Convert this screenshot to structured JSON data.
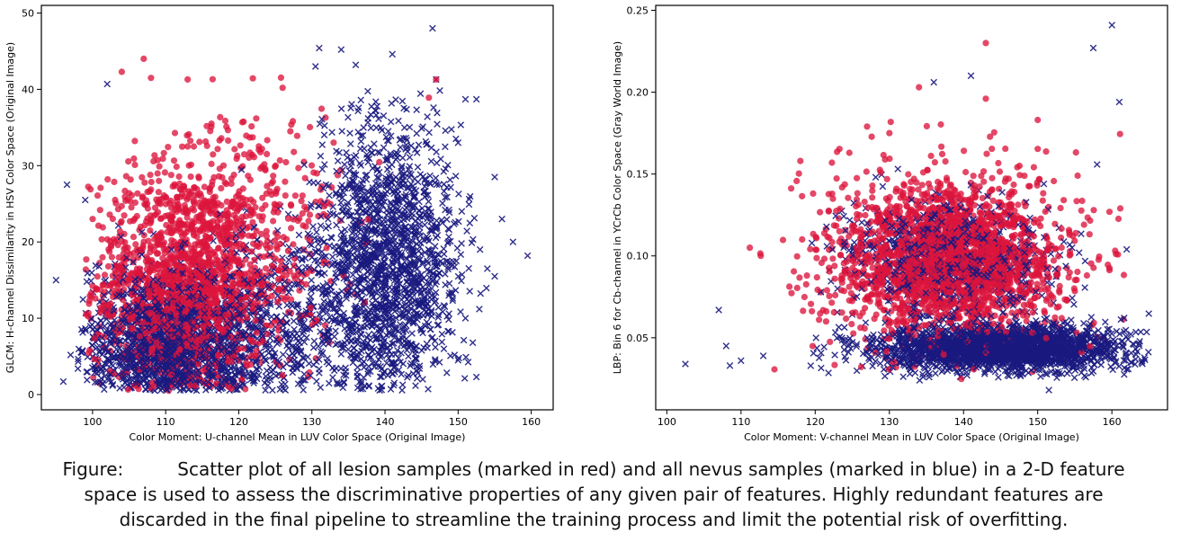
{
  "caption": {
    "lead": "Figure:",
    "text": "Scatter plot of all lesion samples (marked in red) and all nevus samples (marked in blue) in a 2-D feature space is used to assess the discriminative properties of any given pair of features. Highly redundant features are discarded in the final pipeline to streamline the training process and limit the potential risk of overfitting."
  },
  "chart_data": [
    {
      "type": "scatter",
      "title": "",
      "xlabel": "Color Moment: U-channel Mean in LUV Color Space (Original Image)",
      "ylabel": "GLCM: H-channel Dissimilarity in HSV Color Space (Original Image)",
      "xlim": [
        93,
        163
      ],
      "ylim": [
        -2,
        51
      ],
      "xticks": [
        100,
        110,
        120,
        130,
        140,
        150,
        160
      ],
      "yticks": [
        0,
        10,
        20,
        30,
        40,
        50
      ],
      "ytick_labels": [
        "0",
        "10",
        "20",
        "30",
        "40",
        "50"
      ],
      "grid": false,
      "legend": "none",
      "series": [
        {
          "color": "#dc143c",
          "marker": "circle",
          "clusters": [
            {
              "cx": 112,
              "cy": 14,
              "sx": 6,
              "sy": 8,
              "n": 1500,
              "xmin": 99,
              "xmax": 128,
              "ymin": 0.5,
              "ymax": 44
            },
            {
              "cx": 122,
              "cy": 20,
              "sx": 6,
              "sy": 9,
              "n": 400,
              "xmin": 110,
              "xmax": 145,
              "ymin": 0.5,
              "ymax": 42
            }
          ],
          "points": [
            [
              107,
              44
            ],
            [
              104,
              42.3
            ],
            [
              108,
              41.5
            ],
            [
              113,
              41.3
            ],
            [
              126,
              40.2
            ],
            [
              147,
              41.3
            ],
            [
              146,
              38.9
            ]
          ]
        },
        {
          "color": "#1a1a80",
          "marker": "x",
          "clusters": [
            {
              "cx": 110,
              "cy": 6,
              "sx": 6,
              "sy": 5,
              "n": 1400,
              "xmin": 98,
              "xmax": 128,
              "ymin": 0.5,
              "ymax": 28
            },
            {
              "cx": 140,
              "cy": 17,
              "sx": 5,
              "sy": 10,
              "n": 1600,
              "xmin": 128,
              "xmax": 154,
              "ymin": 0.5,
              "ymax": 40
            },
            {
              "cx": 125,
              "cy": 8,
              "sx": 6,
              "sy": 7,
              "n": 500,
              "xmin": 110,
              "xmax": 140,
              "ymin": 0.5,
              "ymax": 35
            }
          ],
          "points": [
            [
              95,
              15
            ],
            [
              96.5,
              27.5
            ],
            [
              99,
              25.5
            ],
            [
              102,
              40.7
            ],
            [
              131,
              45.4
            ],
            [
              134,
              45.2
            ],
            [
              141,
              44.6
            ],
            [
              146.5,
              48
            ],
            [
              130.5,
              43
            ],
            [
              136,
              43.2
            ],
            [
              147,
              41.3
            ],
            [
              152.5,
              38.7
            ],
            [
              151,
              38.7
            ],
            [
              150,
              33
            ],
            [
              155,
              28.5
            ],
            [
              156,
              23
            ],
            [
              157.5,
              20
            ],
            [
              159.5,
              18.2
            ],
            [
              153,
              19
            ],
            [
              154,
              16.5
            ],
            [
              155,
              15.5
            ],
            [
              150.5,
              24
            ],
            [
              151,
              10
            ],
            [
              152,
              6.8
            ],
            [
              150,
              4.5
            ],
            [
              152.5,
              2.3
            ],
            [
              97,
              5.2
            ],
            [
              100,
              8.5
            ],
            [
              98,
              3.4
            ],
            [
              96,
              1.7
            ]
          ]
        }
      ]
    },
    {
      "type": "scatter",
      "title": "",
      "xlabel": "Color Moment: V-channel Mean in LUV Color Space (Original Image)",
      "ylabel": "LBP: Bin 6 for Cb-channel in YCrCb Color Space (Gray World Image)",
      "xlim": [
        98.5,
        167.5
      ],
      "ylim": [
        0.006,
        0.253
      ],
      "xticks": [
        100,
        110,
        120,
        130,
        140,
        150,
        160
      ],
      "yticks": [
        0.05,
        0.1,
        0.15,
        0.2,
        0.25
      ],
      "ytick_labels": [
        "0.05",
        "0.10",
        "0.15",
        "0.20",
        "0.25"
      ],
      "grid": false,
      "legend": "none",
      "series": [
        {
          "color": "#dc143c",
          "marker": "circle",
          "clusters": [
            {
              "cx": 138,
              "cy": 0.098,
              "sx": 8,
              "sy": 0.025,
              "n": 2200,
              "xmin": 110,
              "xmax": 162,
              "ymin": 0.024,
              "ymax": 0.185
            }
          ],
          "points": [
            [
              143,
              0.23
            ],
            [
              134,
              0.203
            ],
            [
              143,
              0.196
            ],
            [
              118,
              0.158
            ],
            [
              127,
              0.179
            ],
            [
              130,
              0.175
            ],
            [
              150,
              0.183
            ]
          ]
        },
        {
          "color": "#1a1a80",
          "marker": "x",
          "clusters": [
            {
              "cx": 145,
              "cy": 0.044,
              "sx": 8,
              "sy": 0.007,
              "n": 2400,
              "xmin": 118,
              "xmax": 165,
              "ymin": 0.024,
              "ymax": 0.065
            },
            {
              "cx": 138,
              "cy": 0.098,
              "sx": 7,
              "sy": 0.018,
              "n": 800,
              "xmin": 115,
              "xmax": 160,
              "ymin": 0.05,
              "ymax": 0.17
            }
          ],
          "points": [
            [
              102.5,
              0.034
            ],
            [
              107,
              0.067
            ],
            [
              108,
              0.045
            ],
            [
              108.5,
              0.033
            ],
            [
              110,
              0.036
            ],
            [
              113,
              0.039
            ],
            [
              160,
              0.241
            ],
            [
              157.5,
              0.227
            ],
            [
              161,
              0.194
            ],
            [
              141,
              0.21
            ],
            [
              136,
              0.206
            ],
            [
              151.5,
              0.018
            ],
            [
              164,
              0.035
            ],
            [
              162,
              0.104
            ]
          ]
        }
      ]
    }
  ]
}
